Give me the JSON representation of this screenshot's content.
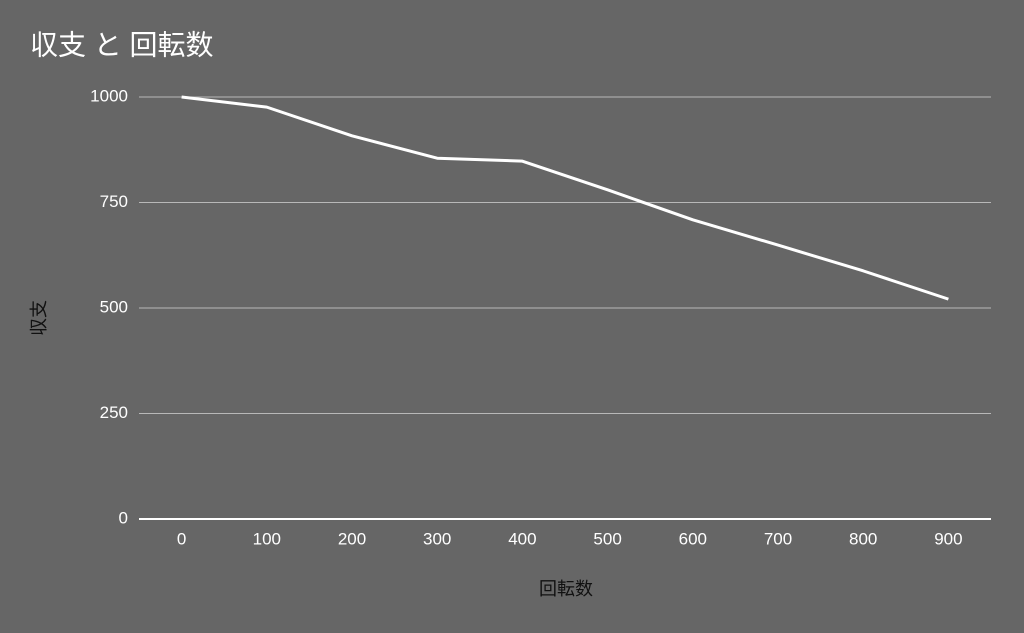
{
  "chart_data": {
    "type": "line",
    "title": "収支 と 回転数",
    "x_label": "回転数",
    "y_label": "収支",
    "categories": [
      "0",
      "100",
      "200",
      "300",
      "400",
      "500",
      "600",
      "700",
      "800",
      "900"
    ],
    "series": [
      {
        "name": "収支",
        "color": "#ffffff",
        "values": [
          1000,
          976,
          908,
          855,
          848,
          780,
          709,
          649,
          588,
          521
        ]
      }
    ],
    "ylim": [
      0,
      1000
    ],
    "yticks": [
      0,
      250,
      500,
      750,
      1000
    ],
    "grid": true
  }
}
